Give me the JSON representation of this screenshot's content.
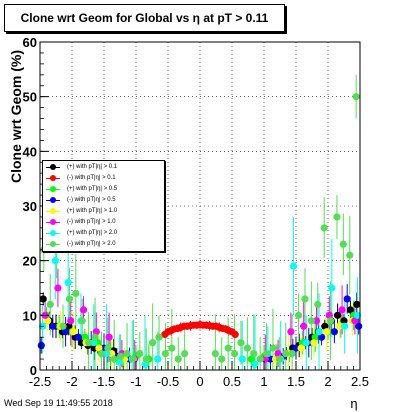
{
  "chart_data": {
    "type": "scatter",
    "title": "Clone wrt Geom for Global vs   η at pT > 0.11",
    "xlabel": "η",
    "ylabel": "Clone wrt Geom (%)",
    "xlim": [
      -2.5,
      2.5
    ],
    "ylim": [
      0,
      60
    ],
    "x_ticks": [
      "-2.5",
      "-2",
      "-1.5",
      "-1",
      "-0.5",
      "0",
      "0.5",
      "1",
      "1.5",
      "2",
      "2.5"
    ],
    "y_ticks": [
      "0",
      "10",
      "20",
      "30",
      "40",
      "50",
      "60"
    ],
    "grid": true,
    "legend_position": "left-center",
    "series": [
      {
        "name": "(+) with pT|η| > 0.1",
        "color": "#000000",
        "err": 1.2,
        "x": [
          -2.45,
          -2.35,
          -2.25,
          -2.15,
          -2.05,
          -1.95,
          -1.85,
          -1.75,
          -1.65,
          -1.55,
          -1.45,
          -1.35,
          1.35,
          1.45,
          1.55,
          1.65,
          1.75,
          1.85,
          1.95,
          2.05,
          2.15,
          2.25,
          2.35,
          2.45
        ],
        "y": [
          13,
          9,
          8,
          7,
          8,
          6,
          5,
          4.5,
          4,
          3.5,
          3,
          3.5,
          3,
          4,
          4.5,
          5,
          6,
          7,
          8,
          9,
          10,
          9,
          11,
          12
        ]
      },
      {
        "name": "(-) with pT|η| > 0.1",
        "color": "#ff0000",
        "err": 0.5,
        "x": [
          -0.55,
          -0.5,
          -0.45,
          -0.4,
          -0.35,
          -0.3,
          -0.25,
          -0.2,
          -0.15,
          -0.1,
          -0.05,
          0.0,
          0.05,
          0.1,
          0.15,
          0.2,
          0.25,
          0.3,
          0.35,
          0.4,
          0.45,
          0.5,
          0.55
        ],
        "y": [
          6.5,
          7,
          7.2,
          7.5,
          7.6,
          7.8,
          8,
          8,
          8.1,
          8.2,
          8.2,
          8.3,
          8.2,
          8.2,
          8.1,
          8,
          8,
          7.8,
          7.6,
          7.5,
          7.2,
          7,
          6.5
        ]
      },
      {
        "name": "(+) with pT|η| > 0.5",
        "color": "#00ff00",
        "err": 1.5,
        "x": [
          -2.4,
          -2.2,
          -2.0,
          -1.8,
          -1.6,
          -1.4,
          -1.2,
          -1.0,
          -0.8,
          0.8,
          1.0,
          1.2,
          1.4,
          1.6,
          1.8,
          2.0,
          2.2,
          2.4
        ],
        "y": [
          10,
          8,
          7,
          6,
          5,
          3,
          2,
          2.5,
          2,
          2,
          2.5,
          2,
          3,
          5,
          6,
          7,
          8,
          10
        ]
      },
      {
        "name": "(-) with pT|η| > 0.5",
        "color": "#0000ff",
        "err": 1.5,
        "x": [
          -2.48,
          -2.3,
          -2.1,
          -1.9,
          -1.7,
          -1.5,
          -1.3,
          -1.1,
          1.1,
          1.3,
          1.5,
          1.7,
          1.9,
          2.1,
          2.3,
          2.48
        ],
        "y": [
          4.5,
          8,
          7,
          6,
          5,
          4,
          2.5,
          2,
          2,
          2.5,
          4,
          5,
          6,
          7,
          13,
          8
        ]
      },
      {
        "name": "(+) with pT|η| > 1.0",
        "color": "#ffff00",
        "err": 2.0,
        "x": [
          -2.38,
          -2.18,
          -1.98,
          -1.78,
          -1.58,
          -1.38,
          -1.18,
          1.18,
          1.38,
          1.58,
          1.78,
          1.98,
          2.18,
          2.38
        ],
        "y": [
          9,
          8,
          7,
          5,
          4,
          3,
          2,
          2,
          3,
          4,
          5,
          7,
          8,
          9
        ]
      },
      {
        "name": "(-) with pT|η| > 1.0",
        "color": "#ff00ff",
        "err": 2.5,
        "x": [
          -2.42,
          -2.22,
          -2.02,
          -1.82,
          -1.62,
          -1.42,
          -1.22,
          -1.02,
          1.02,
          1.22,
          1.42,
          1.62,
          1.82,
          2.02,
          2.22,
          2.42
        ],
        "y": [
          10,
          15,
          9,
          11,
          7,
          6,
          3,
          2,
          2,
          3,
          7,
          8,
          9,
          10,
          11,
          9
        ]
      },
      {
        "name": "(+) with pT|η| > 2.0",
        "color": "#00ffff",
        "err": 5.0,
        "x": [
          -2.46,
          -2.26,
          -2.06,
          -1.86,
          -1.66,
          -1.46,
          -1.26,
          -1.06,
          -0.86,
          -0.66,
          0.66,
          0.86,
          1.06,
          1.26,
          1.46,
          1.66,
          1.86,
          2.06,
          2.26,
          2.46
        ],
        "y": [
          8,
          20,
          16,
          9,
          5,
          3,
          1.5,
          2,
          1,
          2,
          2,
          1,
          3,
          2,
          19,
          5,
          7,
          15,
          8,
          10
        ]
      },
      {
        "name": "(-) with pT|η| > 2.0",
        "color": "#55dd55",
        "err": 4.0,
        "x": [
          -2.44,
          -2.34,
          -2.24,
          -2.14,
          -2.04,
          -1.94,
          -1.84,
          -1.74,
          -1.64,
          -1.54,
          -1.44,
          -1.34,
          -1.24,
          -1.14,
          -1.04,
          -0.94,
          -0.84,
          -0.74,
          -0.64,
          -0.54,
          -0.44,
          -0.34,
          -0.24,
          0.24,
          0.34,
          0.44,
          0.54,
          0.64,
          0.74,
          0.84,
          0.94,
          1.04,
          1.14,
          1.24,
          1.34,
          1.44,
          1.54,
          1.64,
          1.74,
          1.84,
          1.94,
          2.04,
          2.14,
          2.24,
          2.34,
          2.44
        ],
        "y": [
          22,
          12,
          24,
          8,
          13,
          14,
          9,
          5,
          6,
          3,
          4,
          2,
          2.5,
          3,
          2,
          3,
          2,
          5,
          6,
          3,
          4,
          2,
          3,
          3,
          2,
          4,
          3,
          5,
          4,
          3,
          2,
          3,
          4,
          2,
          3,
          3,
          10,
          13,
          9,
          12,
          26,
          9,
          28,
          23,
          21,
          50
        ]
      }
    ]
  },
  "footer_text": "Wed Sep 19 11:49:55 2018"
}
